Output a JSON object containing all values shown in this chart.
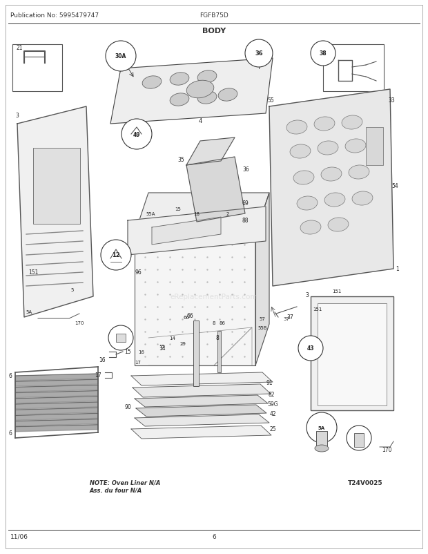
{
  "pub_no": "Publication No: 5995479747",
  "model": "FGFB75D",
  "section": "BODY",
  "date": "11/06",
  "page": "6",
  "diagram_id": "T24V0025",
  "note_line1": "NOTE: Oven Liner N/A",
  "note_line2": "Ass. du four N/A",
  "watermark": "eReplacementParts.com",
  "bg_color": "#ffffff",
  "border_color": "#000000",
  "text_color": "#333333",
  "fig_width": 6.2,
  "fig_height": 8.03,
  "dpi": 100
}
